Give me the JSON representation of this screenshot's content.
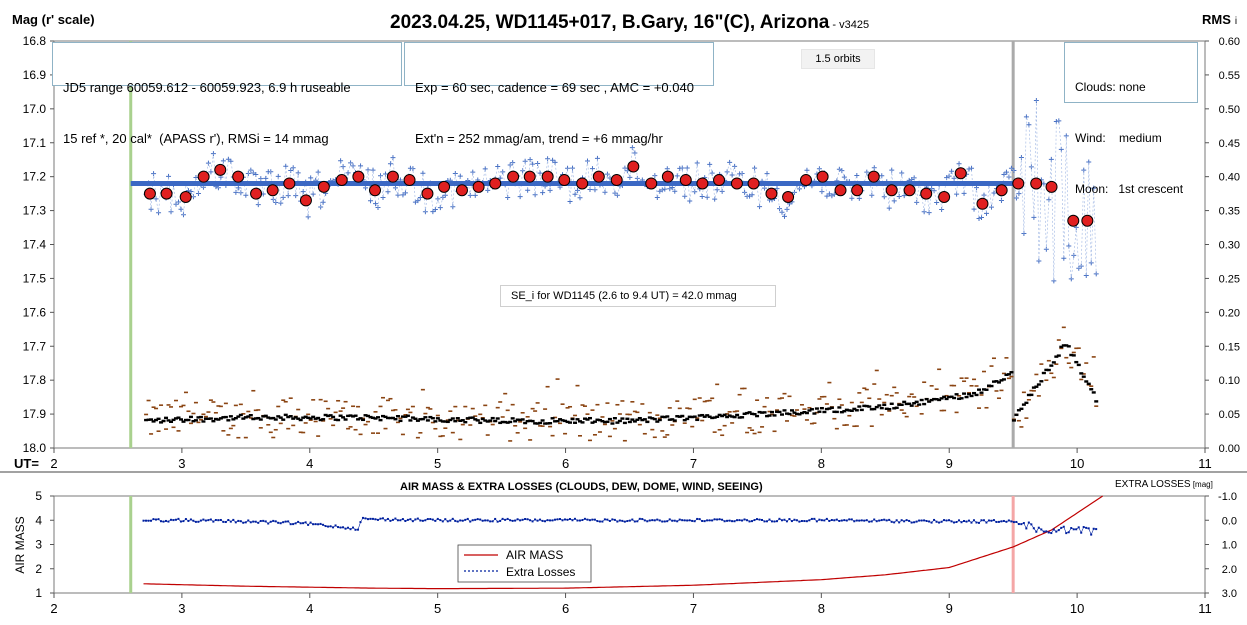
{
  "header": {
    "left_axis_title": "Mag (r' scale)",
    "title": "2023.04.25, WD1145+017, B.Gary, 16\"(C), Arizona",
    "version": " - v3425",
    "right_axis_title": "RMS",
    "right_axis_suffix": "i",
    "ut_label": "UT="
  },
  "boxes": {
    "jd5_line1": "JD5 range 60059.612 - 60059.923, 6.9 h ruseable",
    "jd5_line2": "15 ref *, 20 cal*  (APASS r'), RMSi = 14 mmag",
    "exp_line1": "Exp = 60 sec, cadence = 69 sec , AMC = +0.040",
    "exp_line2": "Ext'n = 252 mmag/am, trend = +6 mmag/hr",
    "orbits": "1.5 orbits",
    "clouds": "Clouds: none",
    "wind": "Wind:    medium",
    "moon": "Moon:   1st crescent",
    "se": "SE_i for WD1145 (2.6 to 9.4 UT) = 42.0 mmag"
  },
  "lower": {
    "title": "AIR MASS & EXTRA LOSSES (CLOUDS, DEW, DOME, WIND, SEEING)",
    "right_title": "EXTRA LOSSES",
    "right_title_unit": " [mag]",
    "left_axis_title": "AIR MASS",
    "legend_airmass": "AIR MASS",
    "legend_losses": "Extra Losses"
  },
  "colors": {
    "raw": "#4a72c4",
    "binned_fill": "#e02020",
    "model_line": "#3b68c4",
    "rms_raw": "#8b4513",
    "rms_binned": "#000000",
    "start_line": "#a9d18e",
    "end_line": "#aaaaaa",
    "airmass": "#c00000",
    "losses": "#00209f",
    "end_line_lower": "#f4a6a6"
  },
  "chart_data": [
    {
      "type": "scatter",
      "title": "2023.04.25, WD1145+017, B.Gary, 16\"(C), Arizona",
      "ylabel": "Mag (r' scale)",
      "xlabel": "UT=",
      "xlim": [
        2,
        11
      ],
      "ylim": [
        16.8,
        18.0
      ],
      "y_inverted": true,
      "y2label": "RMS i",
      "y2lim": [
        0.0,
        0.6
      ],
      "xticks": [
        "2",
        "3",
        "4",
        "5",
        "6",
        "7",
        "8",
        "9",
        "10",
        "11"
      ],
      "yticks": [
        "16.8",
        "16.9",
        "17.0",
        "17.1",
        "17.2",
        "17.3",
        "17.4",
        "17.5",
        "17.6",
        "17.7",
        "17.8",
        "17.9",
        "18.0"
      ],
      "y2ticks": [
        "0.60",
        "0.55",
        "0.50",
        "0.45",
        "0.40",
        "0.35",
        "0.30",
        "0.25",
        "0.20",
        "0.15",
        "0.10",
        "0.05",
        "0.00"
      ],
      "vlines": [
        2.6,
        9.5
      ],
      "model_line": {
        "x": [
          2.6,
          9.5
        ],
        "y": [
          17.22,
          17.22
        ]
      },
      "binned": {
        "x": [
          2.75,
          2.88,
          3.03,
          3.17,
          3.3,
          3.44,
          3.58,
          3.71,
          3.84,
          3.97,
          4.11,
          4.25,
          4.38,
          4.51,
          4.65,
          4.78,
          4.92,
          5.05,
          5.19,
          5.32,
          5.45,
          5.59,
          5.72,
          5.86,
          5.99,
          6.13,
          6.26,
          6.4,
          6.53,
          6.67,
          6.8,
          6.94,
          7.07,
          7.2,
          7.34,
          7.47,
          7.61,
          7.74,
          7.88,
          8.01,
          8.15,
          8.28,
          8.41,
          8.55,
          8.69,
          8.82,
          8.96,
          9.09,
          9.26,
          9.41,
          9.54,
          9.68,
          9.8,
          9.97,
          10.08
        ],
        "y": [
          17.25,
          17.25,
          17.26,
          17.2,
          17.18,
          17.2,
          17.25,
          17.24,
          17.22,
          17.27,
          17.23,
          17.21,
          17.2,
          17.24,
          17.2,
          17.21,
          17.25,
          17.23,
          17.24,
          17.23,
          17.22,
          17.2,
          17.2,
          17.2,
          17.21,
          17.22,
          17.2,
          17.21,
          17.17,
          17.22,
          17.2,
          17.21,
          17.22,
          17.21,
          17.22,
          17.22,
          17.25,
          17.26,
          17.21,
          17.2,
          17.24,
          17.24,
          17.2,
          17.24,
          17.24,
          17.25,
          17.26,
          17.19,
          17.28,
          17.24,
          17.22,
          17.22,
          17.23,
          17.33,
          17.33
        ]
      },
      "raw_scatter_sd": 0.042,
      "rms_binned_level": [
        0.04,
        0.045,
        0.045,
        0.04,
        0.04,
        0.05,
        0.06,
        0.08,
        0.17
      ]
    },
    {
      "type": "line",
      "title": "AIR MASS & EXTRA LOSSES (CLOUDS, DEW, DOME, WIND, SEEING)",
      "ylabel": "AIR MASS",
      "xlim": [
        2,
        11
      ],
      "ylim": [
        1,
        5
      ],
      "y2label": "EXTRA LOSSES [mag]",
      "y2lim": [
        3.0,
        -1.0
      ],
      "xticks": [
        "2",
        "3",
        "4",
        "5",
        "6",
        "7",
        "8",
        "9",
        "10",
        "11"
      ],
      "yticks": [
        "5",
        "4",
        "3",
        "2",
        "1"
      ],
      "y2ticks": [
        "-1.0",
        "0.0",
        "1.0",
        "2.0",
        "3.0"
      ],
      "vlines": [
        2.6,
        9.5
      ],
      "series": [
        {
          "name": "AIR MASS",
          "x": [
            2.7,
            3.5,
            4.5,
            5.0,
            6.0,
            7.0,
            8.0,
            8.5,
            9.0,
            9.5,
            9.8,
            10.0,
            10.2
          ],
          "y": [
            1.38,
            1.28,
            1.2,
            1.18,
            1.2,
            1.32,
            1.55,
            1.75,
            2.05,
            2.9,
            3.6,
            4.3,
            5.0
          ]
        },
        {
          "name": "Extra Losses",
          "x": [
            2.7,
            3.0,
            3.5,
            3.8,
            4.0,
            4.2,
            4.38,
            4.4,
            5.0,
            6.0,
            7.0,
            8.0,
            9.0,
            9.5,
            9.8,
            10.0,
            10.15
          ],
          "y": [
            0.0,
            0.0,
            0.05,
            0.1,
            0.15,
            0.25,
            0.35,
            -0.05,
            0.0,
            0.0,
            0.0,
            0.0,
            0.05,
            0.05,
            0.45,
            0.4,
            0.5
          ]
        }
      ]
    }
  ]
}
